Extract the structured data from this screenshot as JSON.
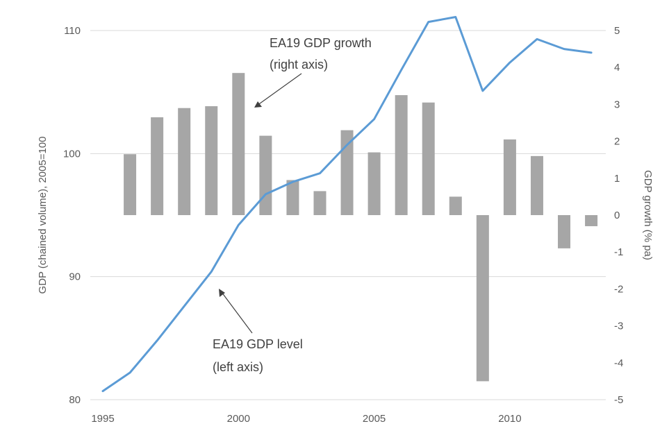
{
  "chart_data": {
    "type": "bar+line",
    "x": [
      1995,
      1996,
      1997,
      1998,
      1999,
      2000,
      2001,
      2002,
      2003,
      2004,
      2005,
      2006,
      2007,
      2008,
      2009,
      2010,
      2011,
      2012,
      2013
    ],
    "series": [
      {
        "name": "EA19 GDP growth",
        "type": "bar",
        "axis": "right",
        "color": "#a6a6a6",
        "values": [
          null,
          1.65,
          2.65,
          2.9,
          2.95,
          3.85,
          2.15,
          0.95,
          0.65,
          2.3,
          1.7,
          3.25,
          3.05,
          0.5,
          -4.5,
          2.05,
          1.6,
          -0.9,
          -0.3
        ]
      },
      {
        "name": "EA19 GDP level",
        "type": "line",
        "axis": "left",
        "color": "#5b9bd5",
        "values": [
          80.7,
          82.2,
          84.8,
          87.6,
          90.4,
          94.2,
          96.7,
          97.7,
          98.4,
          100.7,
          102.8,
          106.8,
          110.7,
          111.1,
          105.1,
          107.4,
          109.3,
          108.5,
          108.2
        ]
      }
    ],
    "xticks": [
      "1995",
      "2000",
      "2005",
      "2010"
    ],
    "left_axis": {
      "title": "GDP (chained volume), 2005=100",
      "ylim": [
        80,
        110
      ],
      "ticks": [
        "80",
        "90",
        "100",
        "110"
      ]
    },
    "right_axis": {
      "title": "GDP growth (% pa)",
      "ylim": [
        -5,
        5
      ],
      "ticks": [
        "5",
        "4",
        "3",
        "2",
        "1",
        "0",
        "-1",
        "-2",
        "-3",
        "-4",
        "-5"
      ]
    },
    "annotations": [
      {
        "lines": [
          "EA19 GDP growth",
          "(right axis)"
        ]
      },
      {
        "lines": [
          "EA19 GDP level",
          "(left axis)"
        ]
      }
    ],
    "grid": true
  }
}
